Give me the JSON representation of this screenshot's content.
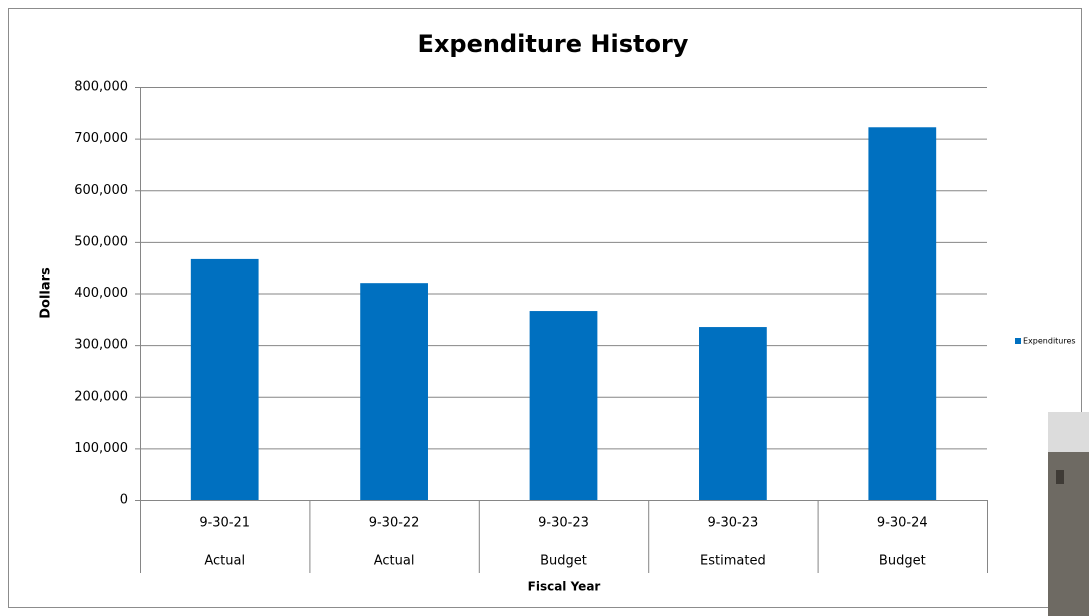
{
  "chart_data": {
    "type": "bar",
    "title": "Expenditure History",
    "x_label": "Fiscal Year",
    "y_label": "Dollars",
    "categories": [
      "9-30-21",
      "9-30-22",
      "9-30-23",
      "9-30-23",
      "9-30-24"
    ],
    "category_groups": [
      "Actual",
      "Actual",
      "Budget",
      "Estimated",
      "Budget"
    ],
    "series": [
      {
        "name": "Expenditures",
        "color": "#0070c0",
        "values": [
          467000,
          420000,
          366000,
          335000,
          722000
        ]
      }
    ],
    "ylim": [
      0,
      800000
    ],
    "yticks": [
      0,
      {
        "value": 100000,
        "label": "100,000"
      },
      {
        "value": 200000,
        "label": "200,000"
      },
      {
        "value": 300000,
        "label": "300,000"
      },
      {
        "value": 400000,
        "label": "400,000"
      },
      {
        "value": 500000,
        "label": "500,000"
      },
      {
        "value": 600000,
        "label": "600,000"
      },
      {
        "value": 700000,
        "label": "700,000"
      },
      {
        "value": 800000,
        "label": "800,000"
      }
    ],
    "grid": true,
    "legend": "right"
  }
}
